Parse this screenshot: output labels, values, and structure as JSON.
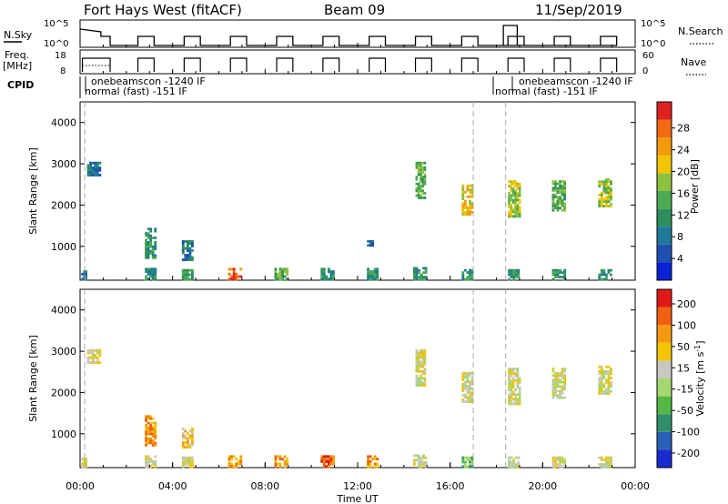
{
  "header": {
    "station": "Fort Hays West (fitACF)",
    "beam": "Beam 09",
    "date": "11/Sep/2019"
  },
  "top_panels": {
    "nsky_label": "N.Sky",
    "nsky_ticks": [
      "10^5",
      "10^0"
    ],
    "nsearch_label": "N.Search",
    "nsearch_ticks": [
      "10^5",
      "10^0"
    ],
    "freq_label_1": "Freq.",
    "freq_label_2": "[MHz]",
    "freq_ticks": [
      "18",
      "8"
    ],
    "nave_label": "Nave",
    "nave_ticks": [
      "60",
      "0"
    ],
    "cpid_label": "CPID",
    "cpid_segments": [
      {
        "upper": "onebeamscon -1240 IF",
        "lower": "normal (fast) -151 IF"
      },
      {
        "upper": "onebeamscon -1240 IF",
        "lower": "normal (fast) -151 IF"
      }
    ]
  },
  "chart_data": [
    {
      "type": "heatmap",
      "name": "power-panel",
      "ylabel": "Slant Range [km]",
      "xlabel": "",
      "xlim_hours": [
        0,
        24
      ],
      "ylim_km": [
        180,
        4500
      ],
      "yticks": [
        1000,
        2000,
        3000,
        4000
      ],
      "colorbar": {
        "label": "Power [dB]",
        "ticks": [
          "4",
          "8",
          "12",
          "16",
          "20",
          "24",
          "28"
        ],
        "colors": [
          "#0a22d6",
          "#1f4fb0",
          "#1f7a9a",
          "#2e8f5e",
          "#4caa55",
          "#8fc13e",
          "#f2c400",
          "#f39a0a",
          "#f46a12",
          "#e02222"
        ]
      },
      "echo_blocks": [
        {
          "t0": 0.05,
          "t1": 0.3,
          "r0": 180,
          "r1": 420,
          "level": 2
        },
        {
          "t0": 0.3,
          "t1": 0.9,
          "r0": 2700,
          "r1": 3050,
          "level": 2
        },
        {
          "t0": 2.8,
          "t1": 3.3,
          "r0": 180,
          "r1": 480,
          "level": 3
        },
        {
          "t0": 2.8,
          "t1": 3.3,
          "r0": 700,
          "r1": 1450,
          "level": 3
        },
        {
          "t0": 4.4,
          "t1": 4.9,
          "r0": 180,
          "r1": 450,
          "level": 3
        },
        {
          "t0": 4.4,
          "t1": 4.9,
          "r0": 650,
          "r1": 1150,
          "level": 2
        },
        {
          "t0": 6.4,
          "t1": 7.0,
          "r0": 180,
          "r1": 480,
          "level": 8
        },
        {
          "t0": 8.4,
          "t1": 9.0,
          "r0": 180,
          "r1": 480,
          "level": 4
        },
        {
          "t0": 10.4,
          "t1": 11.0,
          "r0": 180,
          "r1": 480,
          "level": 3
        },
        {
          "t0": 12.4,
          "t1": 12.9,
          "r0": 180,
          "r1": 480,
          "level": 3
        },
        {
          "t0": 12.4,
          "t1": 12.7,
          "r0": 1000,
          "r1": 1150,
          "level": 2
        },
        {
          "t0": 14.4,
          "t1": 15.0,
          "r0": 180,
          "r1": 500,
          "level": 3
        },
        {
          "t0": 14.5,
          "t1": 14.95,
          "r0": 2150,
          "r1": 3050,
          "level": 4
        },
        {
          "t0": 16.5,
          "t1": 17.0,
          "r0": 180,
          "r1": 450,
          "level": 3
        },
        {
          "t0": 16.5,
          "t1": 17.0,
          "r0": 1750,
          "r1": 2500,
          "level": 6
        },
        {
          "t0": 18.5,
          "t1": 19.0,
          "r0": 180,
          "r1": 450,
          "level": 3
        },
        {
          "t0": 18.5,
          "t1": 19.05,
          "r0": 1700,
          "r1": 2600,
          "level": 5
        },
        {
          "t0": 20.4,
          "t1": 21.0,
          "r0": 180,
          "r1": 450,
          "level": 3
        },
        {
          "t0": 20.4,
          "t1": 21.0,
          "r0": 1850,
          "r1": 2600,
          "level": 4
        },
        {
          "t0": 22.4,
          "t1": 23.0,
          "r0": 180,
          "r1": 450,
          "level": 3
        },
        {
          "t0": 22.4,
          "t1": 23.0,
          "r0": 1950,
          "r1": 2650,
          "level": 5
        }
      ]
    },
    {
      "type": "heatmap",
      "name": "velocity-panel",
      "ylabel": "Slant Range [km]",
      "xlabel": "Time UT",
      "xlim_hours": [
        0,
        24
      ],
      "ylim_km": [
        180,
        4500
      ],
      "yticks": [
        1000,
        2000,
        3000,
        4000
      ],
      "xticks": [
        "00:00",
        "04:00",
        "08:00",
        "12:00",
        "16:00",
        "20:00",
        "00:00"
      ],
      "colorbar": {
        "label": "Velocity [m s^-1]",
        "ticks": [
          "200",
          "100",
          "50",
          "15",
          "-15",
          "-50",
          "-100",
          "-200"
        ],
        "colors": [
          "#1a2ad0",
          "#2a5fb8",
          "#2f8f6a",
          "#55b844",
          "#a6d870",
          "#c8c8c0",
          "#f2c400",
          "#f59a10",
          "#f06010",
          "#e01818"
        ]
      },
      "echo_blocks": [
        {
          "t0": 0.05,
          "t1": 0.3,
          "r0": 180,
          "r1": 420,
          "level": 5
        },
        {
          "t0": 0.3,
          "t1": 0.9,
          "r0": 2700,
          "r1": 3050,
          "level": 5
        },
        {
          "t0": 2.8,
          "t1": 3.3,
          "r0": 180,
          "r1": 480,
          "level": 5
        },
        {
          "t0": 2.8,
          "t1": 3.3,
          "r0": 700,
          "r1": 1450,
          "level": 7
        },
        {
          "t0": 4.4,
          "t1": 4.9,
          "r0": 180,
          "r1": 450,
          "level": 5
        },
        {
          "t0": 4.4,
          "t1": 4.9,
          "r0": 650,
          "r1": 1150,
          "level": 6
        },
        {
          "t0": 6.4,
          "t1": 7.0,
          "r0": 180,
          "r1": 480,
          "level": 7
        },
        {
          "t0": 8.4,
          "t1": 9.0,
          "r0": 180,
          "r1": 480,
          "level": 7
        },
        {
          "t0": 10.4,
          "t1": 11.0,
          "r0": 180,
          "r1": 480,
          "level": 8
        },
        {
          "t0": 12.4,
          "t1": 12.9,
          "r0": 180,
          "r1": 480,
          "level": 7
        },
        {
          "t0": 14.4,
          "t1": 15.0,
          "r0": 180,
          "r1": 500,
          "level": 5
        },
        {
          "t0": 14.5,
          "t1": 14.95,
          "r0": 2150,
          "r1": 3050,
          "level": 5
        },
        {
          "t0": 16.5,
          "t1": 17.0,
          "r0": 180,
          "r1": 450,
          "level": 3
        },
        {
          "t0": 16.5,
          "t1": 17.0,
          "r0": 1750,
          "r1": 2500,
          "level": 5
        },
        {
          "t0": 18.5,
          "t1": 19.0,
          "r0": 180,
          "r1": 450,
          "level": 5
        },
        {
          "t0": 18.5,
          "t1": 19.05,
          "r0": 1700,
          "r1": 2600,
          "level": 5
        },
        {
          "t0": 20.4,
          "t1": 21.0,
          "r0": 180,
          "r1": 450,
          "level": 5
        },
        {
          "t0": 20.4,
          "t1": 21.0,
          "r0": 1850,
          "r1": 2600,
          "level": 5
        },
        {
          "t0": 22.4,
          "t1": 23.0,
          "r0": 180,
          "r1": 450,
          "level": 5
        },
        {
          "t0": 22.4,
          "t1": 23.0,
          "r0": 1950,
          "r1": 2650,
          "level": 5
        }
      ]
    }
  ]
}
